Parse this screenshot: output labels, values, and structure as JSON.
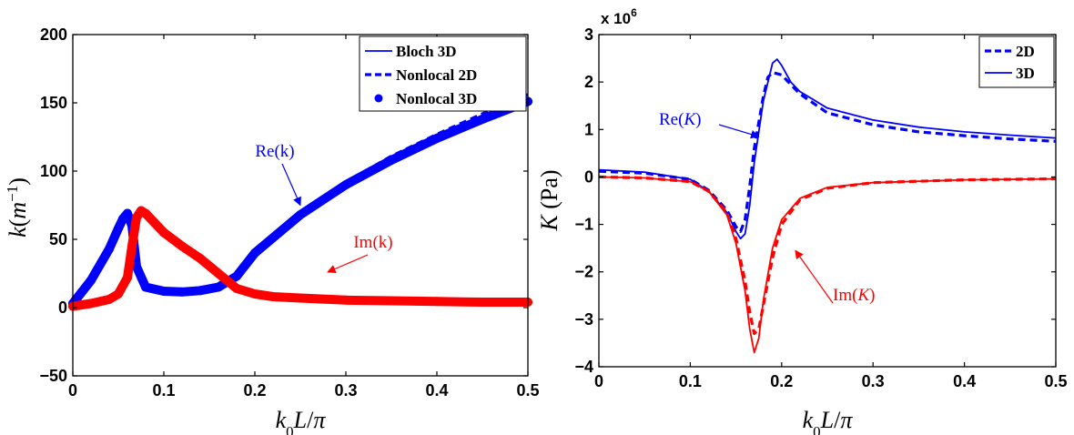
{
  "colors": {
    "blue": "#0000ff",
    "red": "#ff0000",
    "axis": "#000000"
  },
  "chart_data": [
    {
      "type": "line",
      "xlabel": "k0L/π",
      "ylabel": "k(m−1)",
      "xlim": [
        0,
        0.5
      ],
      "ylim": [
        -50,
        200
      ],
      "xticks": [
        "0",
        "0.1",
        "0.2",
        "0.3",
        "0.4",
        "0.5"
      ],
      "yticks": [
        "−50",
        "0",
        "50",
        "100",
        "150",
        "200"
      ],
      "legend_position": "top-right",
      "legend": [
        {
          "label": "Bloch 3D",
          "style": "solid",
          "color": "#0000ff"
        },
        {
          "label": "Nonlocal 2D",
          "style": "dashed",
          "color": "#0000ff"
        },
        {
          "label": "Nonlocal 3D",
          "style": "dots",
          "color": "#0000ff"
        }
      ],
      "annotations": [
        {
          "text": "Re(k)",
          "color": "#0000ff",
          "points_to": [
            0.25,
            75
          ]
        },
        {
          "text": "Im(k)",
          "color": "#ff0000",
          "points_to": [
            0.28,
            26
          ]
        }
      ],
      "series": [
        {
          "part": "Re",
          "model": "Nonlocal 3D",
          "color": "#0000ff",
          "style": "dots",
          "x": [
            0,
            0.02,
            0.04,
            0.05,
            0.055,
            0.06,
            0.065,
            0.07,
            0.08,
            0.1,
            0.12,
            0.14,
            0.16,
            0.18,
            0.2,
            0.25,
            0.3,
            0.35,
            0.4,
            0.45,
            0.5
          ],
          "y": [
            3,
            20,
            43,
            58,
            65,
            69,
            60,
            30,
            15,
            12,
            11.5,
            12.5,
            15,
            23,
            40,
            68,
            90,
            108,
            124,
            138,
            151
          ]
        },
        {
          "part": "Re",
          "model": "Nonlocal 2D",
          "color": "#0000ff",
          "style": "dashed",
          "x": [
            0.18,
            0.2,
            0.25,
            0.3,
            0.35,
            0.4,
            0.45,
            0.5
          ],
          "y": [
            24,
            41,
            70,
            92,
            111,
            127,
            142,
            156
          ]
        },
        {
          "part": "Re",
          "model": "Bloch 3D",
          "color": "#0000ff",
          "style": "solid",
          "x": [
            0.18,
            0.2,
            0.25,
            0.3,
            0.35,
            0.4,
            0.45,
            0.5
          ],
          "y": [
            23,
            40,
            68,
            90,
            108,
            124,
            138,
            151
          ]
        },
        {
          "part": "Im",
          "model": "Nonlocal 3D",
          "color": "#ff0000",
          "style": "dots",
          "x": [
            0,
            0.02,
            0.04,
            0.05,
            0.06,
            0.065,
            0.07,
            0.075,
            0.08,
            0.09,
            0.1,
            0.12,
            0.14,
            0.16,
            0.18,
            0.2,
            0.22,
            0.25,
            0.3,
            0.35,
            0.4,
            0.45,
            0.5
          ],
          "y": [
            1,
            3,
            6,
            10,
            22,
            45,
            66,
            71,
            69,
            62,
            55,
            45,
            36,
            25,
            14,
            10,
            8,
            7,
            5.5,
            5,
            4.5,
            4,
            4
          ]
        }
      ]
    },
    {
      "type": "line",
      "xlabel": "k0L/π",
      "ylabel": "K (Pa)",
      "multiplier": "x 10",
      "multiplier_exp": "6",
      "xlim": [
        0,
        0.5
      ],
      "ylim": [
        -4,
        3
      ],
      "xticks": [
        "0",
        "0.1",
        "0.2",
        "0.3",
        "0.4",
        "0.5"
      ],
      "yticks": [
        "−4",
        "−3",
        "−2",
        "−1",
        "0",
        "1",
        "2",
        "3"
      ],
      "legend_position": "top-right",
      "legend": [
        {
          "label": "2D",
          "style": "dashed",
          "color": "#0000ff"
        },
        {
          "label": "3D",
          "style": "solid",
          "color": "#0000ff"
        }
      ],
      "annotations": [
        {
          "text": "Re(K)",
          "color": "#0000ff",
          "points_to": [
            0.175,
            0.85
          ]
        },
        {
          "text": "Im(K)",
          "color": "#ff0000",
          "points_to": [
            0.215,
            -1.55
          ]
        }
      ],
      "series": [
        {
          "part": "Re",
          "model": "3D",
          "color": "#0000ff",
          "style": "solid",
          "x": [
            0,
            0.05,
            0.1,
            0.12,
            0.14,
            0.15,
            0.155,
            0.16,
            0.165,
            0.17,
            0.18,
            0.19,
            0.195,
            0.2,
            0.21,
            0.22,
            0.25,
            0.3,
            0.35,
            0.4,
            0.45,
            0.5
          ],
          "y": [
            0.15,
            0.1,
            -0.05,
            -0.3,
            -0.75,
            -1.15,
            -1.3,
            -1.2,
            -0.6,
            0.3,
            1.6,
            2.4,
            2.48,
            2.35,
            2.0,
            1.8,
            1.45,
            1.2,
            1.05,
            0.95,
            0.88,
            0.82
          ]
        },
        {
          "part": "Re",
          "model": "2D",
          "color": "#0000ff",
          "style": "dashed",
          "x": [
            0,
            0.05,
            0.1,
            0.12,
            0.14,
            0.15,
            0.155,
            0.16,
            0.165,
            0.17,
            0.18,
            0.185,
            0.19,
            0.2,
            0.21,
            0.22,
            0.25,
            0.3,
            0.35,
            0.4,
            0.45,
            0.5
          ],
          "y": [
            0.12,
            0.08,
            -0.05,
            -0.28,
            -0.7,
            -1.05,
            -1.15,
            -0.9,
            -0.2,
            0.6,
            1.7,
            2.1,
            2.2,
            2.15,
            1.95,
            1.75,
            1.35,
            1.1,
            0.95,
            0.87,
            0.8,
            0.75
          ]
        },
        {
          "part": "Im",
          "model": "3D",
          "color": "#ff0000",
          "style": "solid",
          "x": [
            0,
            0.05,
            0.1,
            0.12,
            0.14,
            0.15,
            0.16,
            0.165,
            0.17,
            0.175,
            0.18,
            0.19,
            0.2,
            0.22,
            0.25,
            0.3,
            0.4,
            0.5
          ],
          "y": [
            0,
            -0.02,
            -0.1,
            -0.3,
            -0.8,
            -1.4,
            -2.4,
            -3.2,
            -3.7,
            -3.4,
            -2.6,
            -1.5,
            -0.9,
            -0.45,
            -0.22,
            -0.12,
            -0.06,
            -0.04
          ]
        },
        {
          "part": "Im",
          "model": "2D",
          "color": "#ff0000",
          "style": "dashed",
          "x": [
            0,
            0.05,
            0.1,
            0.12,
            0.14,
            0.15,
            0.16,
            0.165,
            0.17,
            0.175,
            0.18,
            0.19,
            0.2,
            0.22,
            0.25,
            0.3,
            0.4,
            0.5
          ],
          "y": [
            0,
            -0.02,
            -0.1,
            -0.3,
            -0.75,
            -1.3,
            -2.2,
            -2.85,
            -3.3,
            -3.2,
            -2.7,
            -1.7,
            -1.0,
            -0.48,
            -0.24,
            -0.12,
            -0.06,
            -0.04
          ]
        }
      ]
    }
  ]
}
